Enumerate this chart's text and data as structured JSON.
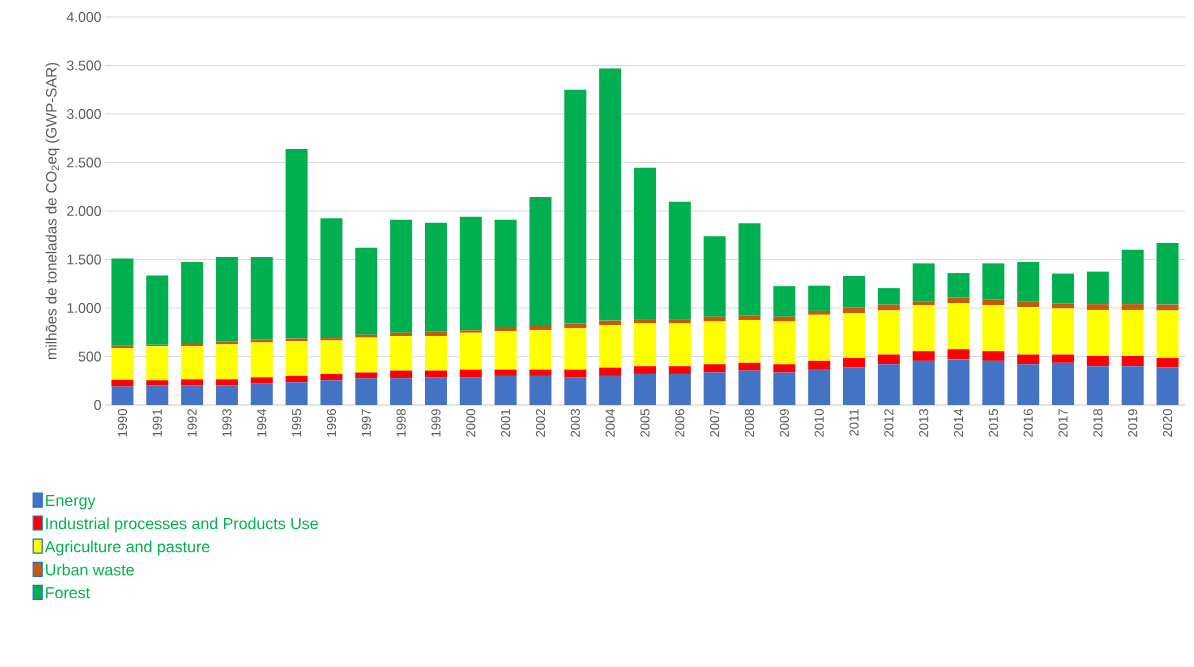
{
  "chart_data": {
    "type": "bar",
    "stacked": true,
    "ylabel": "milhões de toneladas de CO$_{2}$eq (GWP-SAR)",
    "categories": [
      "1990",
      "1991",
      "1992",
      "1993",
      "1994",
      "1995",
      "1996",
      "1997",
      "1998",
      "1999",
      "2000",
      "2001",
      "2002",
      "2003",
      "2004",
      "2005",
      "2006",
      "2007",
      "2008",
      "2009",
      "2010",
      "2011",
      "2012",
      "2013",
      "2014",
      "2015",
      "2016",
      "2017",
      "2018",
      "2019",
      "2020"
    ],
    "ylim": [
      0,
      4000
    ],
    "yticks": [
      0,
      500,
      {
        "value": 1000,
        "label": "1.000"
      },
      {
        "value": 1500,
        "label": "1.500"
      },
      {
        "value": 2000,
        "label": "2.000"
      },
      {
        "value": 2500,
        "label": "2.500"
      },
      {
        "value": 3000,
        "label": "3.000"
      },
      {
        "value": 3500,
        "label": "3.500"
      },
      {
        "value": 4000,
        "label": "4.000"
      }
    ],
    "grid": "y",
    "legend": "bottom left",
    "series": [
      {
        "name": "Energy",
        "color": "#4472c4",
        "values": [
          190,
          200,
          200,
          200,
          220,
          235,
          255,
          275,
          275,
          285,
          285,
          300,
          300,
          285,
          300,
          320,
          320,
          335,
          355,
          335,
          370,
          390,
          420,
          455,
          470,
          455,
          420,
          435,
          400,
          400,
          390
        ]
      },
      {
        "name": "Industrial processes and Products Use",
        "color": "#ff0000",
        "values": [
          70,
          55,
          65,
          65,
          65,
          65,
          65,
          60,
          80,
          70,
          80,
          65,
          65,
          80,
          85,
          80,
          80,
          85,
          80,
          85,
          85,
          95,
          100,
          100,
          105,
          100,
          100,
          85,
          105,
          105,
          95
        ]
      },
      {
        "name": "Agriculture and pasture",
        "color": "#ffff00",
        "values": [
          325,
          350,
          340,
          360,
          360,
          360,
          345,
          360,
          355,
          355,
          380,
          395,
          405,
          425,
          440,
          440,
          440,
          440,
          440,
          440,
          475,
          460,
          455,
          475,
          475,
          475,
          490,
          475,
          475,
          475,
          490
        ]
      },
      {
        "name": "Urban waste",
        "color": "#c55a11",
        "values": [
          25,
          15,
          35,
          30,
          30,
          25,
          25,
          30,
          35,
          45,
          25,
          45,
          45,
          50,
          45,
          45,
          45,
          50,
          50,
          50,
          40,
          60,
          60,
          40,
          60,
          60,
          60,
          50,
          60,
          60,
          60
        ]
      },
      {
        "name": "Forest",
        "color": "#00b050",
        "values": [
          900,
          715,
          835,
          870,
          850,
          1955,
          1235,
          895,
          1165,
          1125,
          1170,
          1105,
          1330,
          2410,
          2600,
          1560,
          1210,
          830,
          950,
          315,
          260,
          325,
          170,
          390,
          250,
          370,
          405,
          310,
          335,
          560,
          635
        ]
      }
    ]
  }
}
